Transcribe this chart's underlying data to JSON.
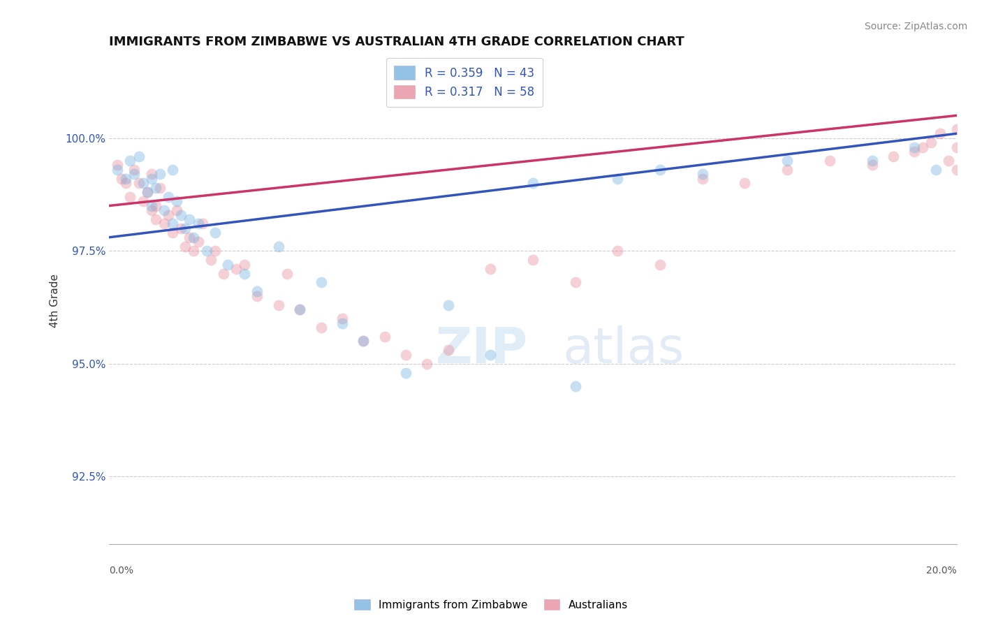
{
  "title": "IMMIGRANTS FROM ZIMBABWE VS AUSTRALIAN 4TH GRADE CORRELATION CHART",
  "source": "Source: ZipAtlas.com",
  "ylabel": "4th Grade",
  "xlim": [
    0.0,
    20.0
  ],
  "ylim": [
    91.0,
    101.8
  ],
  "yticks": [
    92.5,
    95.0,
    97.5,
    100.0
  ],
  "ytick_labels": [
    "92.5%",
    "95.0%",
    "97.5%",
    "100.0%"
  ],
  "series1_name": "Immigrants from Zimbabwe",
  "series1_color": "#7ab3e0",
  "series2_name": "Australians",
  "series2_color": "#e88fa0",
  "legend_R1": "R = 0.359",
  "legend_N1": "N = 43",
  "legend_R2": "R = 0.317",
  "legend_N2": "N = 58",
  "blue_scatter_x": [
    0.2,
    0.4,
    0.5,
    0.6,
    0.7,
    0.8,
    0.9,
    1.0,
    1.0,
    1.1,
    1.2,
    1.3,
    1.4,
    1.5,
    1.5,
    1.6,
    1.7,
    1.8,
    1.9,
    2.0,
    2.1,
    2.3,
    2.5,
    2.8,
    3.2,
    3.5,
    4.0,
    4.5,
    5.0,
    5.5,
    6.0,
    7.0,
    8.0,
    9.0,
    10.0,
    11.0,
    12.0,
    13.0,
    14.0,
    16.0,
    18.0,
    19.0,
    19.5
  ],
  "blue_scatter_y": [
    99.3,
    99.1,
    99.5,
    99.2,
    99.6,
    99.0,
    98.8,
    99.1,
    98.5,
    98.9,
    99.2,
    98.4,
    98.7,
    98.1,
    99.3,
    98.6,
    98.3,
    98.0,
    98.2,
    97.8,
    98.1,
    97.5,
    97.9,
    97.2,
    97.0,
    96.6,
    97.6,
    96.2,
    96.8,
    95.9,
    95.5,
    94.8,
    96.3,
    95.2,
    99.0,
    94.5,
    99.1,
    99.3,
    99.2,
    99.5,
    99.5,
    99.8,
    99.3
  ],
  "pink_scatter_x": [
    0.2,
    0.3,
    0.4,
    0.5,
    0.6,
    0.7,
    0.8,
    0.9,
    1.0,
    1.0,
    1.1,
    1.1,
    1.2,
    1.3,
    1.4,
    1.5,
    1.6,
    1.7,
    1.8,
    1.9,
    2.0,
    2.1,
    2.2,
    2.4,
    2.5,
    2.7,
    3.0,
    3.2,
    3.5,
    4.0,
    4.2,
    4.5,
    5.0,
    5.5,
    6.0,
    6.5,
    7.0,
    7.5,
    8.0,
    9.0,
    10.0,
    11.0,
    12.0,
    13.0,
    14.0,
    15.0,
    16.0,
    17.0,
    18.0,
    18.5,
    19.0,
    19.2,
    19.4,
    19.6,
    19.8,
    20.0,
    20.0,
    20.0
  ],
  "pink_scatter_y": [
    99.4,
    99.1,
    99.0,
    98.7,
    99.3,
    99.0,
    98.6,
    98.8,
    98.4,
    99.2,
    98.2,
    98.5,
    98.9,
    98.1,
    98.3,
    97.9,
    98.4,
    98.0,
    97.6,
    97.8,
    97.5,
    97.7,
    98.1,
    97.3,
    97.5,
    97.0,
    97.1,
    97.2,
    96.5,
    96.3,
    97.0,
    96.2,
    95.8,
    96.0,
    95.5,
    95.6,
    95.2,
    95.0,
    95.3,
    97.1,
    97.3,
    96.8,
    97.5,
    97.2,
    99.1,
    99.0,
    99.3,
    99.5,
    99.4,
    99.6,
    99.7,
    99.8,
    99.9,
    100.1,
    99.5,
    100.2,
    99.8,
    99.3
  ],
  "blue_line_y0": 97.8,
  "blue_line_y1": 100.1,
  "pink_line_y0": 98.5,
  "pink_line_y1": 100.5,
  "background_color": "#ffffff",
  "grid_color": "#cccccc",
  "scatter_size": 130,
  "scatter_alpha": 0.42,
  "line_width": 2.5,
  "line_color_blue": "#3355bb",
  "line_color_pink": "#cc3366"
}
